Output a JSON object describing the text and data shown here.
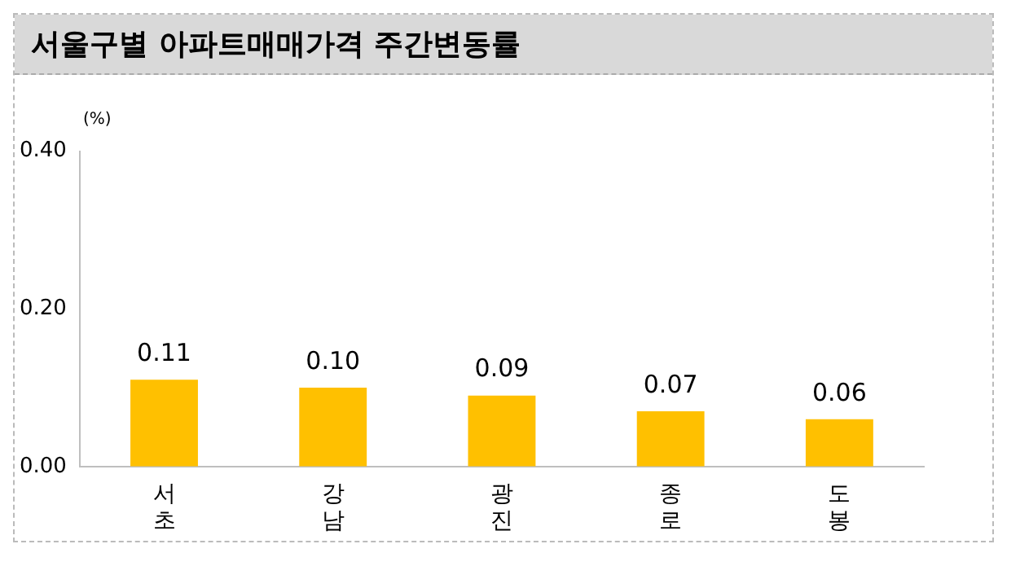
{
  "chart_data": {
    "type": "bar",
    "title": "서울구별 아파트매매가격 주간변동률",
    "ylabel": "(%)",
    "categories": [
      "서초",
      "강남",
      "광진",
      "종로",
      "도봉"
    ],
    "values": [
      0.11,
      0.1,
      0.09,
      0.07,
      0.06
    ],
    "value_labels": [
      "0.11",
      "0.10",
      "0.09",
      "0.07",
      "0.06"
    ],
    "color": "#ffc000",
    "ylim": [
      0,
      0.4
    ],
    "yticks": [
      {
        "value": 0,
        "label": "0.00"
      },
      {
        "value": 0.2,
        "label": "0.20"
      },
      {
        "value": 0.4,
        "label": "0.40"
      }
    ],
    "grid": false,
    "legend": false
  }
}
